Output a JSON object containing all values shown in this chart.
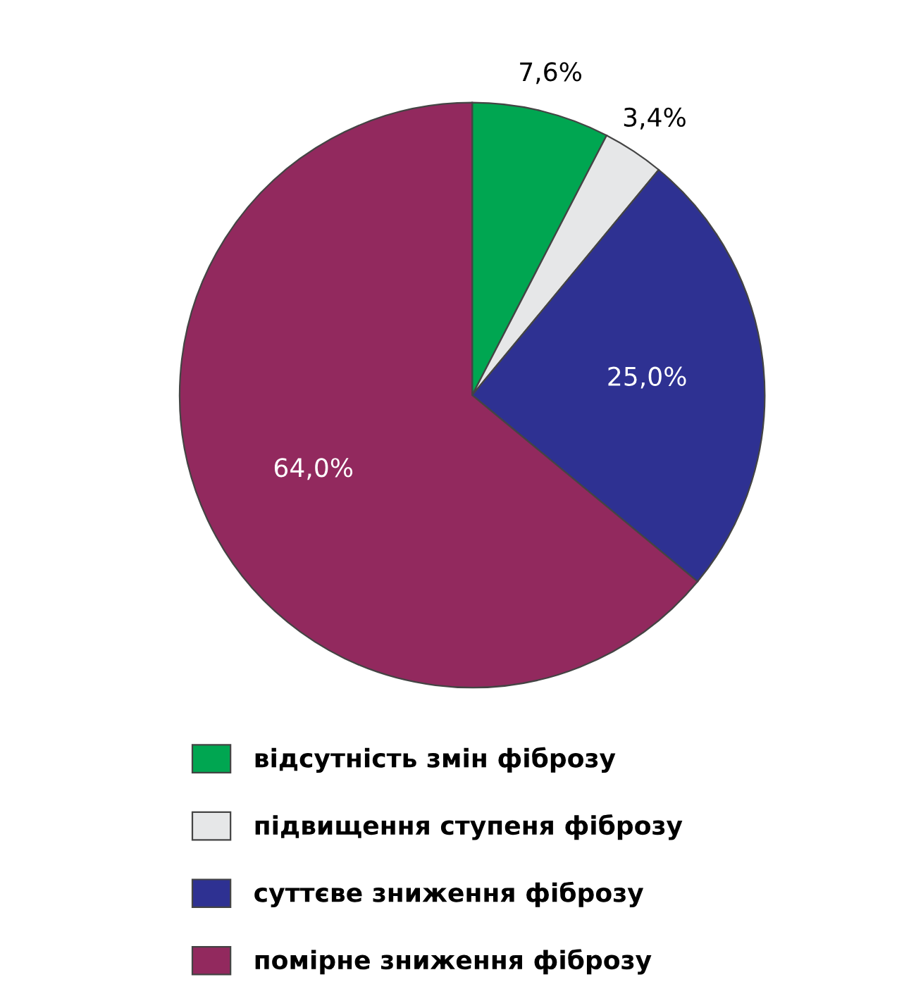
{
  "chart_data": {
    "type": "pie",
    "categories": [
      "відсутність змін фіброзу",
      "підвищення ступеня фіброзу",
      "суттєве зниження фіброзу",
      "помірне зниження фіброзу"
    ],
    "values": [
      7.6,
      3.4,
      25.0,
      64.0
    ],
    "value_labels": [
      "7,6%",
      "3,4%",
      "25,0%",
      "64,0%"
    ],
    "colors": [
      "#00a651",
      "#e6e7e8",
      "#2e3192",
      "#92295e"
    ],
    "legend": "bottom"
  }
}
